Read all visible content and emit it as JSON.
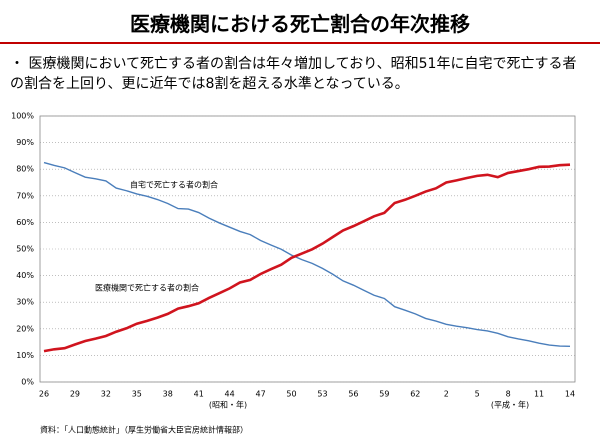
{
  "chart_data": {
    "type": "line",
    "title": "医療機関における死亡割合の年次推移",
    "subtitle": "・ 医療機関において死亡する者の割合は年々増加しており、昭和51年に自宅で死亡する者の割合を上回り、更に近年では8割を超える水準となっている。",
    "categories": [
      "26",
      null,
      null,
      "29",
      null,
      null,
      "32",
      null,
      null,
      "35",
      null,
      null,
      "38",
      null,
      null,
      "41",
      null,
      null,
      "44",
      null,
      null,
      "47",
      null,
      null,
      "50",
      null,
      null,
      "53",
      null,
      null,
      "56",
      null,
      null,
      "59",
      null,
      null,
      "62",
      null,
      null,
      "2",
      null,
      null,
      "5",
      null,
      null,
      "8",
      null,
      null,
      "11",
      null,
      null,
      "14"
    ],
    "series": [
      {
        "name": "自宅で死亡する者の割合",
        "color": "#4a7ebb",
        "values": [
          82.5,
          81.4,
          80.5,
          78.7,
          77.0,
          76.4,
          75.6,
          72.9,
          71.9,
          70.7,
          69.8,
          68.6,
          67.1,
          65.2,
          65.0,
          63.7,
          61.6,
          59.8,
          58.2,
          56.6,
          55.4,
          53.2,
          51.5,
          49.9,
          47.7,
          46.0,
          44.6,
          42.7,
          40.5,
          38.0,
          36.4,
          34.5,
          32.6,
          31.4,
          28.3,
          27.0,
          25.6,
          23.9,
          22.9,
          21.7,
          21.0,
          20.4,
          19.7,
          19.2,
          18.3,
          17.0,
          16.2,
          15.5,
          14.6,
          13.9,
          13.5,
          13.4
        ]
      },
      {
        "name": "医療機関で死亡する者の割合",
        "color": "#d0141e",
        "values": [
          11.6,
          12.3,
          12.7,
          14.1,
          15.4,
          16.3,
          17.3,
          18.9,
          20.2,
          21.9,
          23.0,
          24.2,
          25.6,
          27.6,
          28.5,
          29.6,
          31.6,
          33.4,
          35.2,
          37.4,
          38.4,
          40.6,
          42.4,
          44.1,
          46.7,
          48.3,
          49.9,
          52.0,
          54.5,
          57.0,
          58.6,
          60.4,
          62.3,
          63.6,
          67.3,
          68.5,
          70.0,
          71.6,
          72.8,
          75.0,
          75.8,
          76.7,
          77.5,
          77.9,
          77.0,
          78.6,
          79.3,
          80.0,
          80.9,
          81.0,
          81.5,
          81.7
        ]
      }
    ],
    "ylim": [
      0,
      100
    ],
    "yticks": [
      {
        "value": 0,
        "label": "0%"
      },
      {
        "value": 10,
        "label": "10%"
      },
      {
        "value": 20,
        "label": "20%"
      },
      {
        "value": 30,
        "label": "30%"
      },
      {
        "value": 40,
        "label": "40%"
      },
      {
        "value": 50,
        "label": "50%"
      },
      {
        "value": 60,
        "label": "60%"
      },
      {
        "value": 70,
        "label": "70%"
      },
      {
        "value": 80,
        "label": "80%"
      },
      {
        "value": 90,
        "label": "90%"
      },
      {
        "value": 100,
        "label": "100%"
      }
    ],
    "grid": true,
    "annotations": [
      "(昭和・年)",
      "(平成・年)"
    ],
    "source": "資料：「人口動態統計」（厚生労働省大臣官房統計情報部）"
  }
}
